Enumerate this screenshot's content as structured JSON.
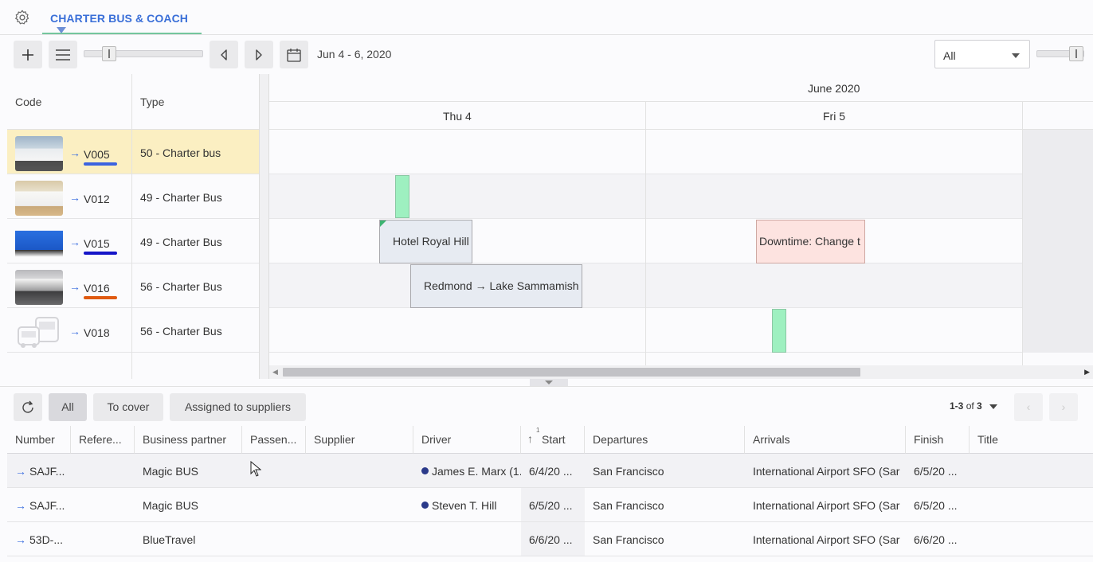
{
  "tab": {
    "title": "CHARTER BUS & COACH"
  },
  "toolbar": {
    "date_range": "Jun 4 - 6, 2020",
    "filter_value": "All"
  },
  "resources": {
    "headers": {
      "code": "Code",
      "type": "Type"
    },
    "rows": [
      {
        "code": "V005",
        "type": "50 - Charter bus",
        "underline": "#3b63e0"
      },
      {
        "code": "V012",
        "type": "49 - Charter Bus",
        "underline": ""
      },
      {
        "code": "V015",
        "type": "49 - Charter Bus",
        "underline": "#1515c8"
      },
      {
        "code": "V016",
        "type": "56 - Charter Bus",
        "underline": "#e05a10"
      },
      {
        "code": "V018",
        "type": "56 - Charter Bus",
        "underline": ""
      }
    ]
  },
  "timeline": {
    "month": "June 2020",
    "days": [
      "Thu 4",
      "Fri 5"
    ],
    "events": [
      {
        "label": "Hotel Royal Hill",
        "kind": "trip"
      },
      {
        "label": "Downtime: Change t",
        "kind": "downtime"
      },
      {
        "label": "Redmond → Lake Sammamish",
        "kind": "trip"
      }
    ]
  },
  "filters": {
    "all": "All",
    "to_cover": "To cover",
    "assigned": "Assigned to suppliers"
  },
  "pager": {
    "range": "1-3",
    "of": "of",
    "total": "3"
  },
  "table": {
    "sort_index": "1",
    "headers": [
      "Number",
      "Refere...",
      "Business partner",
      "Passen...",
      "Supplier",
      "Driver",
      "Start",
      "Departures",
      "Arrivals",
      "Finish",
      "Title"
    ],
    "rows": [
      {
        "number": "SAJF...",
        "partner": "Magic BUS",
        "driver": "James E. Marx (1.",
        "start": "6/4/20 ...",
        "departures": "San Francisco",
        "arrivals": "International Airport SFO (Sar",
        "finish": "6/5/20 ..."
      },
      {
        "number": "SAJF...",
        "partner": "Magic BUS",
        "driver": "Steven T. Hill",
        "start": "6/5/20 ...",
        "departures": "San Francisco",
        "arrivals": "International Airport SFO (Sar",
        "finish": "6/5/20 ..."
      },
      {
        "number": "53D-...",
        "partner": "BlueTravel",
        "driver": "",
        "start": "6/6/20 ...",
        "departures": "San Francisco",
        "arrivals": "International Airport SFO (Sar",
        "finish": "6/6/20 ..."
      }
    ]
  },
  "colors": {
    "accent": "#3a6fd8",
    "tab_underline": "#74c69d",
    "selected_row": "#fbefc2",
    "downtime": "#fde3e0",
    "trip": "#e7ebf2",
    "marker": "#9ef0c0"
  }
}
